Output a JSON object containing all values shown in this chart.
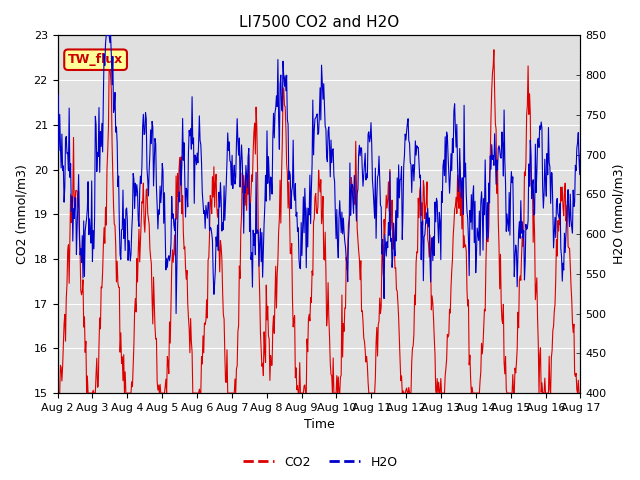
{
  "title": "LI7500 CO2 and H2O",
  "xlabel": "Time",
  "ylabel_left": "CO2 (mmol/m3)",
  "ylabel_right": "H2O (mmol/m3)",
  "co2_ylim": [
    15.0,
    23.0
  ],
  "h2o_ylim": [
    400,
    850
  ],
  "x_tick_labels": [
    "Aug 2",
    "Aug 3",
    "Aug 4",
    "Aug 5",
    "Aug 6",
    "Aug 7",
    "Aug 8",
    "Aug 9",
    "Aug 10",
    "Aug 11",
    "Aug 12",
    "Aug 13",
    "Aug 14",
    "Aug 15",
    "Aug 16",
    "Aug 17"
  ],
  "co2_color": "#dd0000",
  "h2o_color": "#0000cc",
  "background_color": "#e0e0e0",
  "annotation_text": "TW_flux",
  "annotation_bg": "#ffff99",
  "annotation_border": "#cc0000",
  "annotation_text_color": "#cc0000",
  "grid_color": "#ffffff",
  "title_fontsize": 11,
  "axis_label_fontsize": 9,
  "tick_label_fontsize": 8,
  "legend_fontsize": 9
}
